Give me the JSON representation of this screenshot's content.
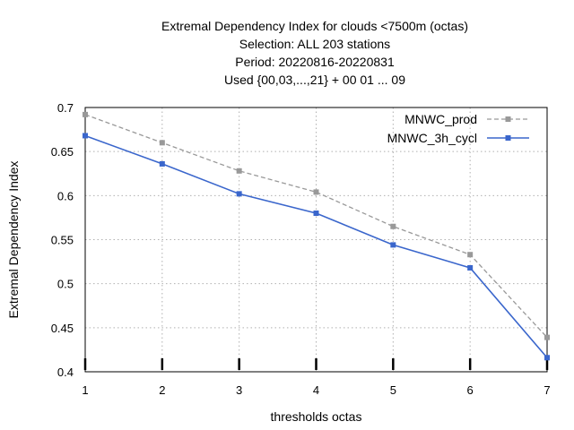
{
  "chart_data": {
    "type": "line",
    "title_lines": [
      "Extremal Dependency Index  for clouds <7500m (octas)",
      "Selection: ALL    203 stations",
      "Period: 20220816-20220831",
      "Used {00,03,...,21} + 00 01 ... 09"
    ],
    "xlabel": "thresholds octas",
    "ylabel": "Extremal Dependency Index",
    "x": [
      1,
      2,
      3,
      4,
      5,
      6,
      7
    ],
    "xlim": [
      1,
      7
    ],
    "ylim": [
      0.4,
      0.7
    ],
    "x_ticks": [
      1,
      2,
      3,
      4,
      5,
      6,
      7
    ],
    "x_tick_labels": [
      "1",
      "2",
      "3",
      "4",
      "5",
      "6",
      "7"
    ],
    "y_ticks": [
      0.4,
      0.45,
      0.5,
      0.55,
      0.6,
      0.65,
      0.7
    ],
    "y_tick_labels": [
      "0.4",
      "0.45",
      "0.5",
      "0.55",
      "0.6",
      "0.65",
      "0.7"
    ],
    "grid": true,
    "legend_position": "top-right",
    "series": [
      {
        "name": "MNWC_prod",
        "values": [
          0.692,
          0.66,
          0.628,
          0.604,
          0.565,
          0.533,
          0.439
        ],
        "color": "#999999",
        "dash": true
      },
      {
        "name": "MNWC_3h_cycl",
        "values": [
          0.668,
          0.636,
          0.602,
          0.58,
          0.544,
          0.518,
          0.416
        ],
        "color": "#3a66cc",
        "dash": false
      }
    ]
  }
}
